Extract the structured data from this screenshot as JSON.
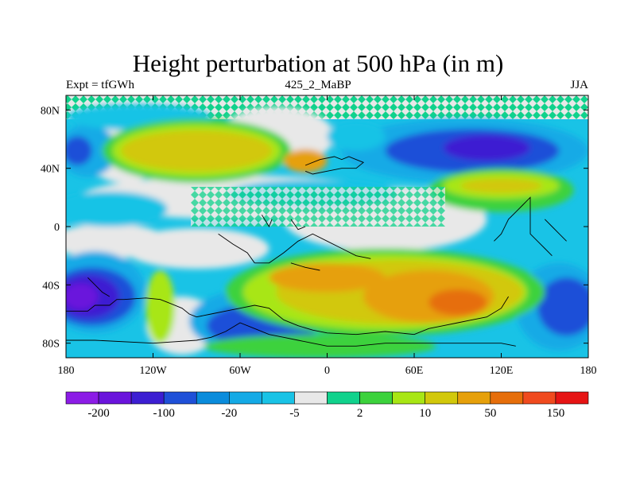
{
  "title": "Height perturbation at 500 hPa (in m)",
  "subtitles": {
    "left": "Expt = tfGWh",
    "center": "425_2_MaBP",
    "right": "JJA"
  },
  "axes": {
    "x_ticks": [
      {
        "value": -180,
        "label": "180"
      },
      {
        "value": -120,
        "label": "120W"
      },
      {
        "value": -60,
        "label": "60W"
      },
      {
        "value": 0,
        "label": "0"
      },
      {
        "value": 60,
        "label": "60E"
      },
      {
        "value": 120,
        "label": "120E"
      },
      {
        "value": 180,
        "label": "180"
      }
    ],
    "y_ticks": [
      {
        "value": 80,
        "label": "80N"
      },
      {
        "value": 40,
        "label": "40N"
      },
      {
        "value": 0,
        "label": "0"
      },
      {
        "value": -40,
        "label": "40S"
      },
      {
        "value": -80,
        "label": "80S"
      }
    ],
    "lon_range": [
      -180,
      180
    ],
    "lat_range": [
      -90,
      90
    ]
  },
  "colorbar": {
    "colors": [
      "#8c1ce6",
      "#6a14dc",
      "#3c1ed2",
      "#1f50d8",
      "#0a8cdc",
      "#14aae6",
      "#19c3e6",
      "#e8e8e8",
      "#10d28c",
      "#3cd23c",
      "#a8e614",
      "#d2c80a",
      "#e6a00a",
      "#e66e0a",
      "#f04a1e",
      "#e61414"
    ],
    "labels": [
      {
        "after_index": 0,
        "label": "-200"
      },
      {
        "after_index": 2,
        "label": "-100"
      },
      {
        "after_index": 4,
        "label": "-20"
      },
      {
        "after_index": 6,
        "label": "-5"
      },
      {
        "after_index": 8,
        "label": "2"
      },
      {
        "after_index": 10,
        "label": "10"
      },
      {
        "after_index": 12,
        "label": "50"
      },
      {
        "after_index": 14,
        "label": "150"
      }
    ]
  },
  "regions": [
    {
      "lon": -140,
      "lat": 55,
      "r_lon": 30,
      "r_lat": 25,
      "color": "#e8e8e8"
    },
    {
      "lon": -35,
      "lat": 62,
      "r_lon": 40,
      "r_lat": 20,
      "color": "#e8e8e8"
    },
    {
      "lon": -60,
      "lat": 20,
      "r_lon": 110,
      "r_lat": 15,
      "color": "#e8e8e8"
    },
    {
      "lon": 40,
      "lat": 5,
      "r_lon": 70,
      "r_lat": 22,
      "color": "#e8e8e8"
    },
    {
      "lon": -150,
      "lat": -10,
      "r_lon": 40,
      "r_lat": 12,
      "color": "#e8e8e8"
    },
    {
      "lon": -90,
      "lat": -15,
      "r_lon": 50,
      "r_lat": 14,
      "color": "#e8e8e8"
    },
    {
      "lon": -100,
      "lat": -68,
      "r_lon": 25,
      "r_lat": 20,
      "color": "#e8e8e8"
    },
    {
      "lon": 100,
      "lat": 20,
      "r_lon": 40,
      "r_lat": 10,
      "color": "#e8e8e8"
    },
    {
      "lon": -165,
      "lat": 52,
      "r_lon": 20,
      "r_lat": 18,
      "color": "#14aae6"
    },
    {
      "lon": -172,
      "lat": 52,
      "r_lon": 10,
      "r_lat": 10,
      "color": "#1f50d8"
    },
    {
      "lon": -150,
      "lat": 12,
      "r_lon": 40,
      "r_lat": 12,
      "color": "#19c3e6"
    },
    {
      "lon": -130,
      "lat": 75,
      "r_lon": 50,
      "r_lat": 9,
      "color": "#19c3e6"
    },
    {
      "lon": 95,
      "lat": 52,
      "r_lon": 85,
      "r_lat": 22,
      "color": "#14aae6"
    },
    {
      "lon": 100,
      "lat": 52,
      "r_lon": 60,
      "r_lat": 15,
      "color": "#1f50d8"
    },
    {
      "lon": 110,
      "lat": 54,
      "r_lon": 30,
      "r_lat": 9,
      "color": "#3c1ed2"
    },
    {
      "lon": -10,
      "lat": 22,
      "r_lon": 60,
      "r_lat": 10,
      "color": "#19c3e6"
    },
    {
      "lon": 20,
      "lat": 62,
      "r_lon": 20,
      "r_lat": 10,
      "color": "#19c3e6"
    },
    {
      "lon": -90,
      "lat": 52,
      "r_lon": 65,
      "r_lat": 22,
      "color": "#3cd23c"
    },
    {
      "lon": -90,
      "lat": 52,
      "r_lon": 58,
      "r_lat": 18,
      "color": "#a8e614"
    },
    {
      "lon": -90,
      "lat": 52,
      "r_lon": 52,
      "r_lat": 14,
      "color": "#d2c80a"
    },
    {
      "lon": -15,
      "lat": 45,
      "r_lon": 15,
      "r_lat": 8,
      "color": "#e6a00a"
    },
    {
      "lon": 120,
      "lat": 25,
      "r_lon": 50,
      "r_lat": 15,
      "color": "#3cd23c"
    },
    {
      "lon": 120,
      "lat": 28,
      "r_lon": 40,
      "r_lat": 9,
      "color": "#a8e614"
    },
    {
      "lon": 120,
      "lat": 28,
      "r_lon": 28,
      "r_lat": 5,
      "color": "#d2c80a"
    },
    {
      "lon": -160,
      "lat": -45,
      "r_lon": 35,
      "r_lat": 28,
      "color": "#14aae6"
    },
    {
      "lon": -162,
      "lat": -48,
      "r_lon": 30,
      "r_lat": 20,
      "color": "#1f50d8"
    },
    {
      "lon": -165,
      "lat": -48,
      "r_lon": 22,
      "r_lat": 15,
      "color": "#3c1ed2"
    },
    {
      "lon": -170,
      "lat": -48,
      "r_lon": 12,
      "r_lat": 9,
      "color": "#6a14dc"
    },
    {
      "lon": -50,
      "lat": -65,
      "r_lon": 45,
      "r_lat": 22,
      "color": "#14aae6"
    },
    {
      "lon": -45,
      "lat": -68,
      "r_lon": 38,
      "r_lat": 15,
      "color": "#1f50d8"
    },
    {
      "lon": 160,
      "lat": -55,
      "r_lon": 30,
      "r_lat": 30,
      "color": "#14aae6"
    },
    {
      "lon": 165,
      "lat": -55,
      "r_lon": 20,
      "r_lat": 20,
      "color": "#1f50d8"
    },
    {
      "lon": 40,
      "lat": -45,
      "r_lon": 110,
      "r_lat": 30,
      "color": "#3cd23c"
    },
    {
      "lon": 40,
      "lat": -45,
      "r_lon": 98,
      "r_lat": 26,
      "color": "#a8e614"
    },
    {
      "lon": 50,
      "lat": -45,
      "r_lon": 85,
      "r_lat": 22,
      "color": "#d2c80a"
    },
    {
      "lon": 70,
      "lat": -48,
      "r_lon": 45,
      "r_lat": 18,
      "color": "#e6a00a"
    },
    {
      "lon": 90,
      "lat": -52,
      "r_lon": 20,
      "r_lat": 9,
      "color": "#e66e0a"
    },
    {
      "lon": 0,
      "lat": -35,
      "r_lon": 40,
      "r_lat": 10,
      "color": "#e6a00a"
    },
    {
      "lon": -115,
      "lat": -55,
      "r_lon": 10,
      "r_lat": 25,
      "color": "#a8e614"
    },
    {
      "lon": -5,
      "lat": -82,
      "r_lon": 80,
      "r_lat": 8,
      "color": "#3cd23c"
    }
  ],
  "coastlines": [
    "-180,-58 -165,-58 -160,-54 -150,-54 -145,-50 -140,-50 -125,-49 -115,-50 -110,-52 -100,-56 -95,-60 -90,-62 -80,-60 -70,-58 -60,-56 -50,-54 -40,-56 -30,-64 -20,-68 -10,-71 0,-73 20,-74 40,-72 60,-74 70,-70 80,-68 90,-66 100,-64 110,-62 120,-56 125,-48",
    "-180,-78 -160,-78 -120,-80 -90,-78 -80,-76 -70,-72 -60,-66 -50,-70 -40,-74 -30,-76 -20,-78 -10,-80 0,-82 20,-82 40,-80 60,-80 80,-80 100,-80 120,-80 130,-82",
    "-15,42 -5,46 5,48 10,46 15,48 20,46 25,44 20,40 10,40 0,38 -10,36 -15,38",
    "-50,-25 -40,-25 -30,-18 -20,-10 -10,-5 0,-10 10,-15 20,-20 30,-22",
    "-75,-5 -65,-12 -55,-18 -50,-25",
    "-25,5 -20,-2 -15,0",
    "-45,8 -40,0 -38,5",
    "115,-10 120,-5 125,5 130,10 135,15 140,20 140,-5 145,-10 150,-15 155,-20",
    "150,5 155,0 160,-5 165,-10",
    "-165,-35 -160,-40 -155,-45 -150,-48",
    "-25,-25 -15,-28 -5,-30"
  ]
}
